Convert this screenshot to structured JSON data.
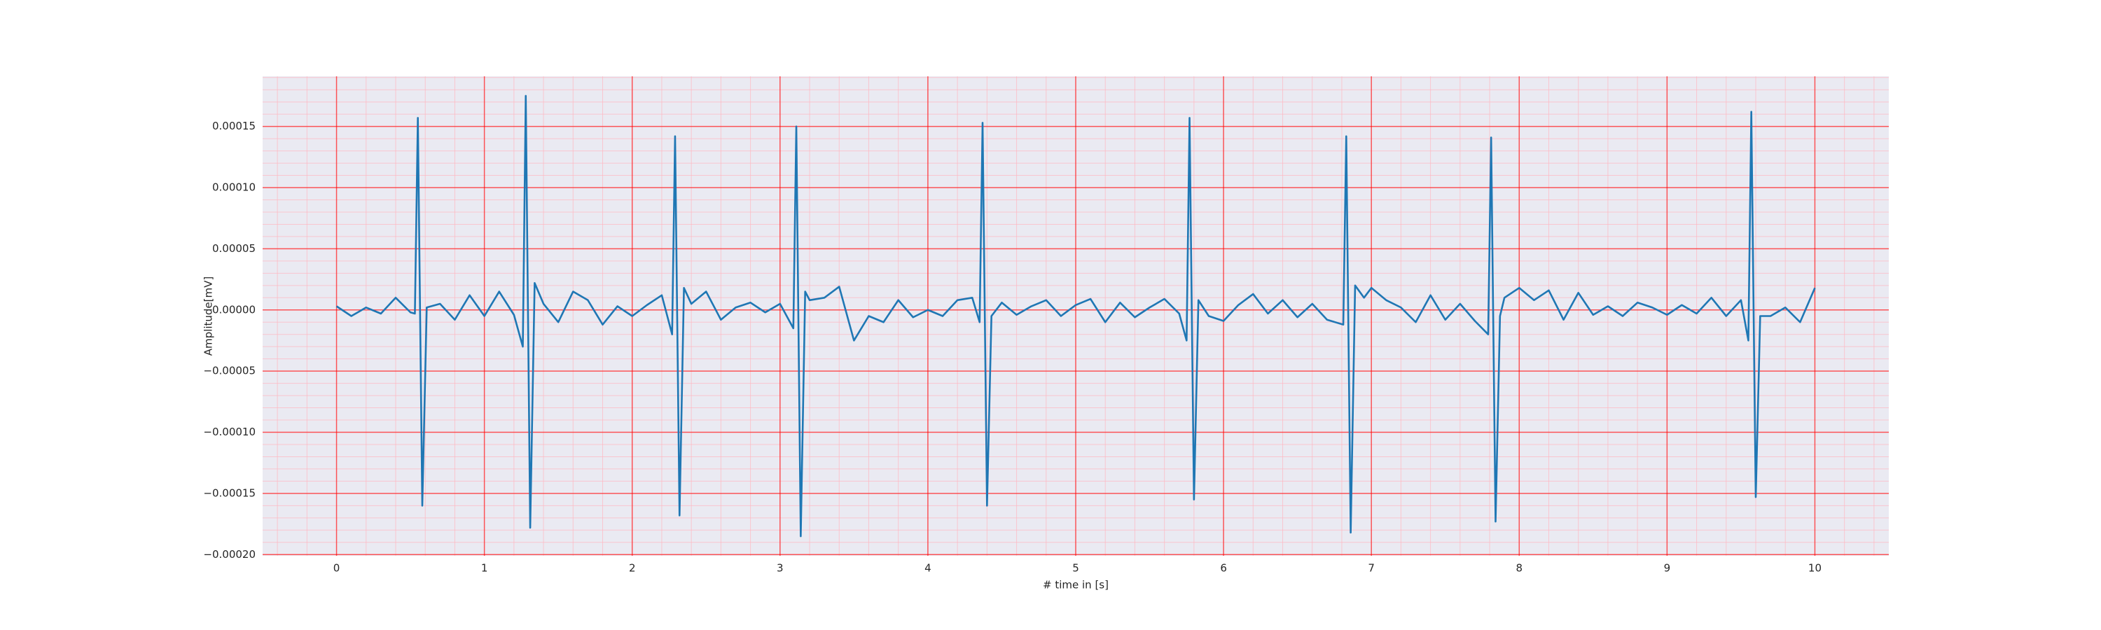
{
  "chart_data": {
    "type": "line",
    "xlabel": "# time in [s]",
    "ylabel": "Amplitude[mV]",
    "color": "#1f77b4",
    "grid": true,
    "minor_grid": true,
    "xlim": [
      -0.5,
      10.5
    ],
    "ylim": [
      -0.000201,
      0.000191
    ],
    "xticks": [
      0,
      1,
      2,
      3,
      4,
      5,
      6,
      7,
      8,
      9,
      10
    ],
    "yticks": [
      {
        "value": -0.0002,
        "label": "−0.00020"
      },
      {
        "value": -0.00015,
        "label": "−0.00015"
      },
      {
        "value": -0.0001,
        "label": "−0.00010"
      },
      {
        "value": -5e-05,
        "label": "−0.00005"
      },
      {
        "value": 0,
        "label": "0.00000"
      },
      5e-05,
      {
        "value": 0.0001,
        "label": "0.00010"
      },
      0.00015
    ],
    "x": [
      0.0,
      0.1,
      0.2,
      0.3,
      0.4,
      0.5,
      0.53,
      0.55,
      0.58,
      0.61,
      0.7,
      0.8,
      0.9,
      1.0,
      1.1,
      1.2,
      1.26,
      1.28,
      1.31,
      1.34,
      1.4,
      1.5,
      1.6,
      1.7,
      1.8,
      1.9,
      2.0,
      2.1,
      2.2,
      2.27,
      2.29,
      2.32,
      2.35,
      2.4,
      2.5,
      2.6,
      2.7,
      2.8,
      2.9,
      3.0,
      3.09,
      3.11,
      3.14,
      3.17,
      3.2,
      3.3,
      3.4,
      3.5,
      3.6,
      3.7,
      3.8,
      3.9,
      4.0,
      4.1,
      4.2,
      4.3,
      4.35,
      4.37,
      4.4,
      4.43,
      4.5,
      4.6,
      4.7,
      4.8,
      4.9,
      5.0,
      5.1,
      5.2,
      5.3,
      5.4,
      5.5,
      5.6,
      5.7,
      5.75,
      5.77,
      5.8,
      5.83,
      5.9,
      6.0,
      6.1,
      6.2,
      6.3,
      6.4,
      6.5,
      6.6,
      6.7,
      6.81,
      6.83,
      6.86,
      6.89,
      6.95,
      7.0,
      7.1,
      7.2,
      7.3,
      7.4,
      7.5,
      7.6,
      7.7,
      7.79,
      7.81,
      7.84,
      7.87,
      7.9,
      8.0,
      8.1,
      8.2,
      8.3,
      8.4,
      8.5,
      8.6,
      8.7,
      8.8,
      8.9,
      9.0,
      9.1,
      9.2,
      9.3,
      9.4,
      9.5,
      9.55,
      9.57,
      9.6,
      9.63,
      9.7,
      9.8,
      9.9,
      10.0
    ],
    "values": [
      3e-06,
      -5e-06,
      2e-06,
      -3e-06,
      1e-05,
      -2e-06,
      -3e-06,
      0.000157,
      -0.00016,
      2e-06,
      5e-06,
      -8e-06,
      1.2e-05,
      -5e-06,
      1.5e-05,
      -4e-06,
      -3e-05,
      0.000175,
      -0.000178,
      2.2e-05,
      5e-06,
      -1e-05,
      1.5e-05,
      8e-06,
      -1.2e-05,
      3e-06,
      -5e-06,
      4e-06,
      1.2e-05,
      -2e-05,
      0.000142,
      -0.000168,
      1.8e-05,
      5e-06,
      1.5e-05,
      -8e-06,
      2e-06,
      6e-06,
      -2e-06,
      5e-06,
      -1.5e-05,
      0.00015,
      -0.000185,
      1.5e-05,
      8e-06,
      1e-05,
      1.9e-05,
      -2.5e-05,
      -5e-06,
      -1e-05,
      8e-06,
      -6e-06,
      0,
      -5e-06,
      8e-06,
      1e-05,
      -1e-05,
      0.000153,
      -0.00016,
      -5e-06,
      6e-06,
      -4e-06,
      3e-06,
      8e-06,
      -5e-06,
      4e-06,
      9e-06,
      -1e-05,
      6e-06,
      -6e-06,
      2e-06,
      9e-06,
      -3e-06,
      -2.5e-05,
      0.000157,
      -0.000155,
      8e-06,
      -5e-06,
      -9e-06,
      4e-06,
      1.3e-05,
      -3e-06,
      8e-06,
      -6e-06,
      5e-06,
      -8e-06,
      -1.2e-05,
      0.000142,
      -0.000182,
      2e-05,
      1e-05,
      1.8e-05,
      8e-06,
      2e-06,
      -1e-05,
      1.2e-05,
      -8e-06,
      5e-06,
      -9e-06,
      -2e-05,
      0.000141,
      -0.000173,
      -5e-06,
      1e-05,
      1.8e-05,
      8e-06,
      1.6e-05,
      -8e-06,
      1.4e-05,
      -4e-06,
      3e-06,
      -5e-06,
      6e-06,
      2e-06,
      -4e-06,
      4e-06,
      -3e-06,
      1e-05,
      -5e-06,
      8e-06,
      -2.5e-05,
      0.000162,
      -0.000153,
      -5e-06,
      -5e-06,
      2e-06,
      -1e-05,
      1.8e-05
    ]
  }
}
